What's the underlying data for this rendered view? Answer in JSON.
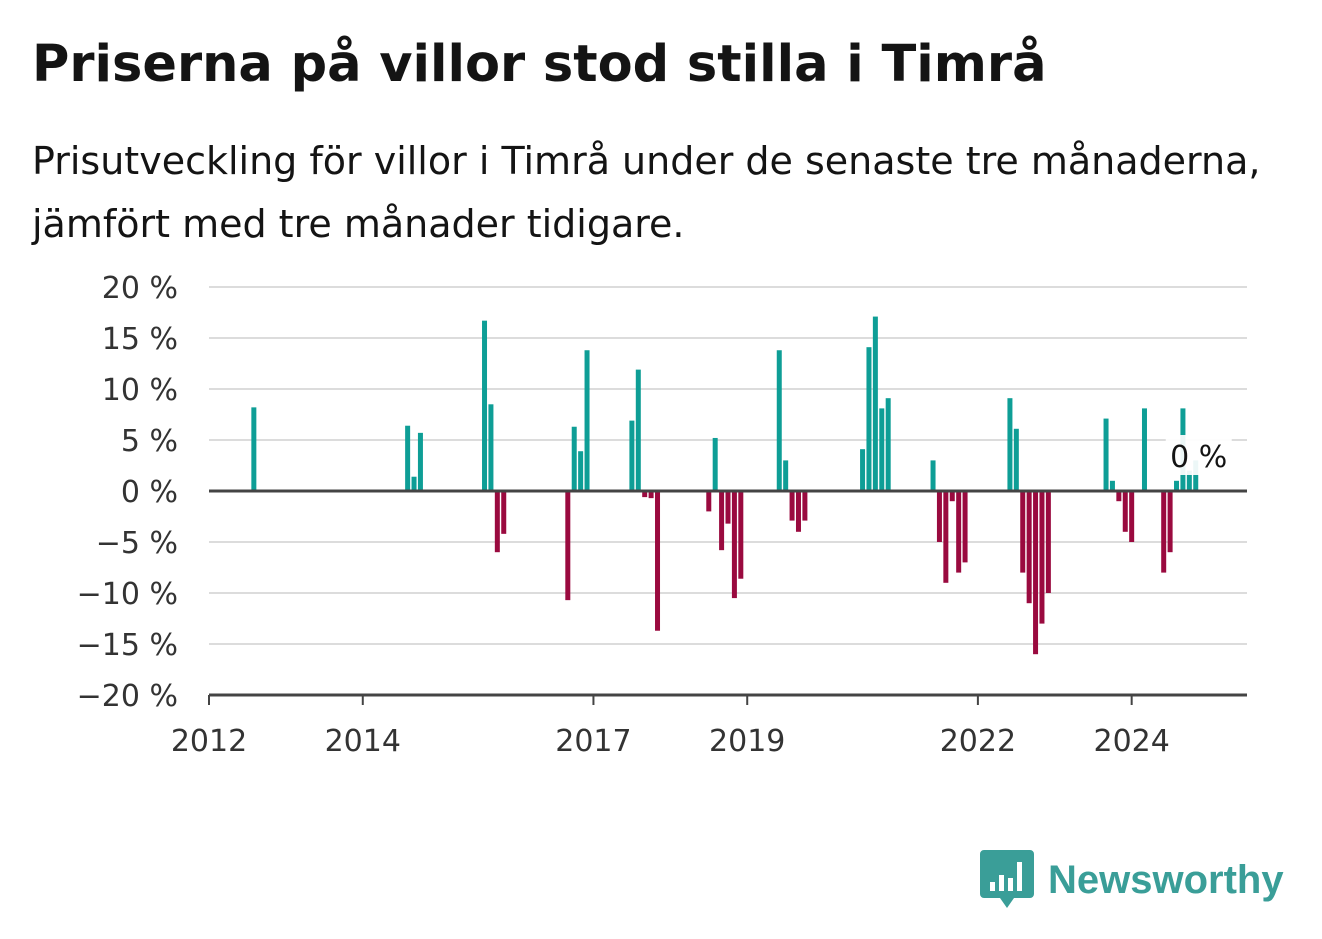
{
  "title": "Priserna på villor stod stilla i Timrå",
  "subtitle": "Prisutveckling för villor i Timrå under de senaste tre månaderna, jämfört med tre månader tidigare.",
  "brand": {
    "name": "Newsworthy",
    "icon": "bar-chart-speech-bubble-icon",
    "color": "#3a9e98"
  },
  "colors": {
    "positive": "#0e9e96",
    "negative": "#9a0a3f",
    "grid": "#dcdcdc",
    "axis": "#444444"
  },
  "chart_data": {
    "type": "bar",
    "title": "Priserna på villor stod stilla i Timrå",
    "subtitle": "Prisutveckling för villor i Timrå under de senaste tre månaderna, jämfört med tre månader tidigare.",
    "xlabel": "",
    "ylabel": "",
    "value_unit": "%",
    "xlim": [
      "2012-01",
      "2025-07"
    ],
    "ylim": [
      -20,
      20
    ],
    "y_ticks": [
      {
        "value": 20,
        "label": "20 %"
      },
      {
        "value": 15,
        "label": "15 %"
      },
      {
        "value": 10,
        "label": "10 %"
      },
      {
        "value": 5,
        "label": "5 %"
      },
      {
        "value": 0,
        "label": "0 %"
      },
      {
        "value": -5,
        "label": "−5 %"
      },
      {
        "value": -10,
        "label": "−10 %"
      },
      {
        "value": -15,
        "label": "−15 %"
      },
      {
        "value": -20,
        "label": "−20 %"
      }
    ],
    "x_ticks": [
      {
        "value": "2012-01",
        "label": "2012"
      },
      {
        "value": "2014-01",
        "label": "2014"
      },
      {
        "value": "2017-01",
        "label": "2017"
      },
      {
        "value": "2019-01",
        "label": "2019"
      },
      {
        "value": "2022-01",
        "label": "2022"
      },
      {
        "value": "2024-01",
        "label": "2024"
      }
    ],
    "grid": true,
    "last_value_label": "0 %",
    "bars": [
      {
        "month": "2012-08",
        "value": 8.2
      },
      {
        "month": "2014-08",
        "value": 6.4
      },
      {
        "month": "2014-09",
        "value": 1.4
      },
      {
        "month": "2014-10",
        "value": 5.7
      },
      {
        "month": "2015-08",
        "value": 16.7
      },
      {
        "month": "2015-09",
        "value": 8.5
      },
      {
        "month": "2015-10",
        "value": -6.0
      },
      {
        "month": "2015-11",
        "value": -4.2
      },
      {
        "month": "2016-09",
        "value": -10.7
      },
      {
        "month": "2016-10",
        "value": 6.3
      },
      {
        "month": "2016-11",
        "value": 3.9
      },
      {
        "month": "2016-12",
        "value": 13.8
      },
      {
        "month": "2017-07",
        "value": 6.9
      },
      {
        "month": "2017-08",
        "value": 11.9
      },
      {
        "month": "2017-09",
        "value": -0.6
      },
      {
        "month": "2017-10",
        "value": -0.7
      },
      {
        "month": "2017-11",
        "value": -13.7
      },
      {
        "month": "2018-07",
        "value": -2.0
      },
      {
        "month": "2018-08",
        "value": 5.2
      },
      {
        "month": "2018-09",
        "value": -5.8
      },
      {
        "month": "2018-10",
        "value": -3.2
      },
      {
        "month": "2018-11",
        "value": -10.5
      },
      {
        "month": "2018-12",
        "value": -8.6
      },
      {
        "month": "2019-06",
        "value": 13.8
      },
      {
        "month": "2019-07",
        "value": 3.0
      },
      {
        "month": "2019-08",
        "value": -2.9
      },
      {
        "month": "2019-09",
        "value": -4.0
      },
      {
        "month": "2019-10",
        "value": -2.9
      },
      {
        "month": "2020-07",
        "value": 4.1
      },
      {
        "month": "2020-08",
        "value": 14.1
      },
      {
        "month": "2020-09",
        "value": 17.1
      },
      {
        "month": "2020-10",
        "value": 8.1
      },
      {
        "month": "2020-11",
        "value": 9.1
      },
      {
        "month": "2021-06",
        "value": 3.0
      },
      {
        "month": "2021-07",
        "value": -5.0
      },
      {
        "month": "2021-08",
        "value": -9.0
      },
      {
        "month": "2021-09",
        "value": -1.0
      },
      {
        "month": "2021-10",
        "value": -8.0
      },
      {
        "month": "2021-11",
        "value": -7.0
      },
      {
        "month": "2022-06",
        "value": 9.1
      },
      {
        "month": "2022-07",
        "value": 6.1
      },
      {
        "month": "2022-08",
        "value": -8.0
      },
      {
        "month": "2022-09",
        "value": -11.0
      },
      {
        "month": "2022-10",
        "value": -16.0
      },
      {
        "month": "2022-11",
        "value": -13.0
      },
      {
        "month": "2022-12",
        "value": -10.0
      },
      {
        "month": "2023-09",
        "value": 7.1
      },
      {
        "month": "2023-10",
        "value": 1.0
      },
      {
        "month": "2023-11",
        "value": -1.0
      },
      {
        "month": "2023-12",
        "value": -4.0
      },
      {
        "month": "2024-01",
        "value": -5.0
      },
      {
        "month": "2024-03",
        "value": 8.1
      },
      {
        "month": "2024-06",
        "value": -8.0
      },
      {
        "month": "2024-07",
        "value": -6.0
      },
      {
        "month": "2024-08",
        "value": 1.0
      },
      {
        "month": "2024-09",
        "value": 8.1
      },
      {
        "month": "2024-10",
        "value": 2.0
      },
      {
        "month": "2024-11",
        "value": 3.0
      }
    ]
  }
}
